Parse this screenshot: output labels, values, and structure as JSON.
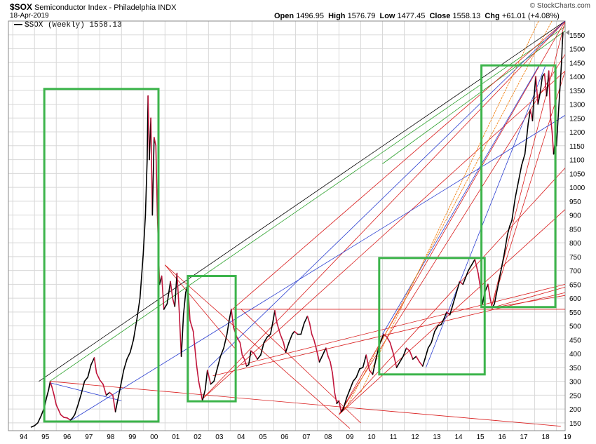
{
  "header": {
    "symbol": "$SOX",
    "title": "Semiconductor Index - Philadelphia",
    "exchange": "INDX",
    "date": "18-Apr-2019",
    "brand": "© StockCharts.com",
    "open_label": "Open",
    "open": "1496.95",
    "high_label": "High",
    "high": "1576.79",
    "low_label": "Low",
    "low": "1477.45",
    "close_label": "Close",
    "close": "1558.13",
    "chg_label": "Chg",
    "chg": "+61.01 (+4.08%)"
  },
  "legend": {
    "label": "$SOX (Weekly) 1558.13"
  },
  "colors": {
    "price_up": "#000000",
    "price_down": "#c0153b",
    "box": "#3cb44b",
    "red_line": "#d91c1c",
    "blue_line": "#2b3fd1",
    "green_line": "#2aa02a",
    "orange_line": "#f07800",
    "grid": "#d8d8d8"
  },
  "chart_data": {
    "type": "line",
    "title": "$SOX Semiconductor Index - Philadelphia INDX",
    "series_name": "$SOX (Weekly)",
    "x_unit": "year",
    "x_ticks": [
      "94",
      "95",
      "96",
      "97",
      "98",
      "99",
      "00",
      "01",
      "02",
      "03",
      "04",
      "05",
      "06",
      "07",
      "08",
      "09",
      "10",
      "11",
      "12",
      "13",
      "14",
      "15",
      "16",
      "17",
      "18",
      "19"
    ],
    "x_tick_values": [
      1994,
      1995,
      1996,
      1997,
      1998,
      1999,
      2000,
      2001,
      2002,
      2003,
      2004,
      2005,
      2006,
      2007,
      2008,
      2009,
      2010,
      2011,
      2012,
      2013,
      2014,
      2015,
      2016,
      2017,
      2018,
      2019
    ],
    "x_range": [
      1993.8,
      2019.4
    ],
    "y_ticks": [
      150,
      200,
      250,
      300,
      350,
      400,
      450,
      500,
      550,
      600,
      650,
      700,
      750,
      800,
      850,
      900,
      950,
      1000,
      1050,
      1100,
      1150,
      1200,
      1250,
      1300,
      1350,
      1400,
      1450,
      1500,
      1550
    ],
    "y_range": [
      122,
      1600
    ],
    "last_value_label": "1558.13",
    "series": [
      [
        1994.85,
        135
      ],
      [
        1995.0,
        140
      ],
      [
        1995.15,
        150
      ],
      [
        1995.3,
        175
      ],
      [
        1995.45,
        205
      ],
      [
        1995.55,
        240
      ],
      [
        1995.65,
        270
      ],
      [
        1995.72,
        298
      ],
      [
        1995.8,
        280
      ],
      [
        1995.9,
        250
      ],
      [
        1996.0,
        215
      ],
      [
        1996.1,
        198
      ],
      [
        1996.2,
        180
      ],
      [
        1996.35,
        170
      ],
      [
        1996.5,
        168
      ],
      [
        1996.65,
        160
      ],
      [
        1996.75,
        168
      ],
      [
        1996.85,
        180
      ],
      [
        1997.0,
        215
      ],
      [
        1997.15,
        255
      ],
      [
        1997.3,
        300
      ],
      [
        1997.45,
        315
      ],
      [
        1997.6,
        360
      ],
      [
        1997.75,
        385
      ],
      [
        1997.85,
        330
      ],
      [
        1998.0,
        305
      ],
      [
        1998.15,
        290
      ],
      [
        1998.3,
        250
      ],
      [
        1998.45,
        260
      ],
      [
        1998.6,
        250
      ],
      [
        1998.72,
        190
      ],
      [
        1998.82,
        230
      ],
      [
        1998.95,
        280
      ],
      [
        1999.1,
        340
      ],
      [
        1999.25,
        380
      ],
      [
        1999.4,
        405
      ],
      [
        1999.55,
        450
      ],
      [
        1999.7,
        520
      ],
      [
        1999.85,
        600
      ],
      [
        2000.0,
        760
      ],
      [
        2000.1,
        900
      ],
      [
        2000.18,
        1100
      ],
      [
        2000.22,
        1330
      ],
      [
        2000.28,
        1100
      ],
      [
        2000.35,
        1250
      ],
      [
        2000.42,
        900
      ],
      [
        2000.5,
        1180
      ],
      [
        2000.58,
        1150
      ],
      [
        2000.65,
        900
      ],
      [
        2000.75,
        650
      ],
      [
        2000.85,
        680
      ],
      [
        2000.95,
        560
      ],
      [
        2001.1,
        580
      ],
      [
        2001.25,
        660
      ],
      [
        2001.35,
        600
      ],
      [
        2001.45,
        570
      ],
      [
        2001.55,
        690
      ],
      [
        2001.65,
        560
      ],
      [
        2001.75,
        390
      ],
      [
        2001.85,
        540
      ],
      [
        2001.95,
        620
      ],
      [
        2002.05,
        650
      ],
      [
        2002.15,
        520
      ],
      [
        2002.3,
        480
      ],
      [
        2002.45,
        360
      ],
      [
        2002.55,
        300
      ],
      [
        2002.65,
        260
      ],
      [
        2002.72,
        230
      ],
      [
        2002.85,
        270
      ],
      [
        2002.95,
        340
      ],
      [
        2003.1,
        290
      ],
      [
        2003.25,
        300
      ],
      [
        2003.4,
        345
      ],
      [
        2003.55,
        390
      ],
      [
        2003.7,
        420
      ],
      [
        2003.85,
        470
      ],
      [
        2003.95,
        520
      ],
      [
        2004.05,
        560
      ],
      [
        2004.15,
        495
      ],
      [
        2004.3,
        460
      ],
      [
        2004.45,
        440
      ],
      [
        2004.55,
        395
      ],
      [
        2004.65,
        380
      ],
      [
        2004.75,
        355
      ],
      [
        2004.85,
        360
      ],
      [
        2004.95,
        410
      ],
      [
        2005.1,
        400
      ],
      [
        2005.25,
        380
      ],
      [
        2005.4,
        395
      ],
      [
        2005.55,
        440
      ],
      [
        2005.7,
        460
      ],
      [
        2005.85,
        470
      ],
      [
        2005.95,
        510
      ],
      [
        2006.05,
        555
      ],
      [
        2006.15,
        510
      ],
      [
        2006.3,
        470
      ],
      [
        2006.45,
        440
      ],
      [
        2006.55,
        405
      ],
      [
        2006.7,
        440
      ],
      [
        2006.85,
        470
      ],
      [
        2006.95,
        480
      ],
      [
        2007.1,
        470
      ],
      [
        2007.25,
        470
      ],
      [
        2007.4,
        510
      ],
      [
        2007.55,
        535
      ],
      [
        2007.65,
        510
      ],
      [
        2007.75,
        470
      ],
      [
        2007.85,
        450
      ],
      [
        2007.95,
        420
      ],
      [
        2008.1,
        370
      ],
      [
        2008.25,
        395
      ],
      [
        2008.4,
        420
      ],
      [
        2008.5,
        390
      ],
      [
        2008.6,
        370
      ],
      [
        2008.7,
        330
      ],
      [
        2008.8,
        260
      ],
      [
        2008.9,
        220
      ],
      [
        2009.0,
        230
      ],
      [
        2009.1,
        190
      ],
      [
        2009.2,
        200
      ],
      [
        2009.35,
        240
      ],
      [
        2009.5,
        270
      ],
      [
        2009.65,
        300
      ],
      [
        2009.8,
        315
      ],
      [
        2009.95,
        345
      ],
      [
        2010.1,
        350
      ],
      [
        2010.25,
        395
      ],
      [
        2010.4,
        340
      ],
      [
        2010.55,
        325
      ],
      [
        2010.7,
        380
      ],
      [
        2010.85,
        430
      ],
      [
        2010.95,
        450
      ],
      [
        2011.05,
        470
      ],
      [
        2011.2,
        460
      ],
      [
        2011.35,
        440
      ],
      [
        2011.5,
        400
      ],
      [
        2011.65,
        350
      ],
      [
        2011.8,
        370
      ],
      [
        2011.95,
        390
      ],
      [
        2012.1,
        420
      ],
      [
        2012.25,
        410
      ],
      [
        2012.4,
        380
      ],
      [
        2012.55,
        390
      ],
      [
        2012.7,
        370
      ],
      [
        2012.85,
        355
      ],
      [
        2012.95,
        380
      ],
      [
        2013.1,
        420
      ],
      [
        2013.25,
        440
      ],
      [
        2013.4,
        480
      ],
      [
        2013.55,
        500
      ],
      [
        2013.7,
        505
      ],
      [
        2013.85,
        530
      ],
      [
        2013.95,
        550
      ],
      [
        2014.1,
        540
      ],
      [
        2014.25,
        580
      ],
      [
        2014.4,
        620
      ],
      [
        2014.55,
        660
      ],
      [
        2014.7,
        650
      ],
      [
        2014.85,
        680
      ],
      [
        2014.95,
        700
      ],
      [
        2015.1,
        720
      ],
      [
        2015.25,
        740
      ],
      [
        2015.4,
        690
      ],
      [
        2015.5,
        640
      ],
      [
        2015.6,
        580
      ],
      [
        2015.7,
        620
      ],
      [
        2015.85,
        650
      ],
      [
        2015.95,
        600
      ],
      [
        2016.05,
        565
      ],
      [
        2016.15,
        580
      ],
      [
        2016.3,
        640
      ],
      [
        2016.45,
        700
      ],
      [
        2016.6,
        760
      ],
      [
        2016.75,
        830
      ],
      [
        2016.85,
        860
      ],
      [
        2016.95,
        880
      ],
      [
        2017.1,
        960
      ],
      [
        2017.25,
        1020
      ],
      [
        2017.4,
        1080
      ],
      [
        2017.55,
        1120
      ],
      [
        2017.7,
        1230
      ],
      [
        2017.8,
        1280
      ],
      [
        2017.9,
        1240
      ],
      [
        2017.95,
        1310
      ],
      [
        2018.05,
        1400
      ],
      [
        2018.15,
        1300
      ],
      [
        2018.25,
        1340
      ],
      [
        2018.35,
        1400
      ],
      [
        2018.45,
        1410
      ],
      [
        2018.55,
        1330
      ],
      [
        2018.65,
        1420
      ],
      [
        2018.72,
        1260
      ],
      [
        2018.8,
        1200
      ],
      [
        2018.87,
        1120
      ],
      [
        2018.95,
        1170
      ],
      [
        2019.0,
        1150
      ],
      [
        2019.1,
        1280
      ],
      [
        2019.18,
        1380
      ],
      [
        2019.24,
        1460
      ],
      [
        2019.27,
        1520
      ],
      [
        2019.3,
        1558.13
      ]
    ],
    "trendlines": [
      {
        "name": "black upper channel",
        "color": "black",
        "x1": 1995.2,
        "y1": 300,
        "x2": 2019.4,
        "y2": 1600
      },
      {
        "name": "green upper channel",
        "color": "green",
        "x1": 1995.7,
        "y1": 300,
        "x2": 2019.4,
        "y2": 1580
      },
      {
        "name": "green parallel",
        "color": "green",
        "x1": 2011.0,
        "y1": 1085,
        "x2": 2019.4,
        "y2": 1565
      },
      {
        "name": "red descending long",
        "color": "red",
        "x1": 1995.7,
        "y1": 300,
        "x2": 2019.2,
        "y2": 138
      },
      {
        "name": "red descending 2001",
        "color": "red",
        "x1": 2001.0,
        "y1": 720,
        "x2": 2009.5,
        "y2": 130
      },
      {
        "name": "red 2002 low fan",
        "color": "red",
        "x1": 2002.7,
        "y1": 235,
        "x2": 2019.4,
        "y2": 1420
      },
      {
        "name": "red 2002 high fan",
        "color": "red",
        "x1": 2001.0,
        "y1": 720,
        "x2": 2004.2,
        "y2": 420
      },
      {
        "name": "red horizontal support",
        "color": "red",
        "x1": 2004.1,
        "y1": 560,
        "x2": 2019.4,
        "y2": 560
      },
      {
        "name": "red 2009 fan 1",
        "color": "red",
        "x1": 2009.0,
        "y1": 180,
        "x2": 2019.4,
        "y2": 1480
      },
      {
        "name": "red 2009 fan 2",
        "color": "red",
        "x1": 2009.0,
        "y1": 180,
        "x2": 2019.4,
        "y2": 1070
      },
      {
        "name": "red 2009 fan 3",
        "color": "red",
        "x1": 2009.0,
        "y1": 180,
        "x2": 2019.4,
        "y2": 920
      },
      {
        "name": "red 2009 fan 4",
        "color": "red",
        "x1": 2009.0,
        "y1": 180,
        "x2": 2019.4,
        "y2": 1600
      },
      {
        "name": "red 2004 rising",
        "color": "red",
        "x1": 2004.5,
        "y1": 360,
        "x2": 2019.4,
        "y2": 650
      },
      {
        "name": "red 2003 rising",
        "color": "red",
        "x1": 2003.2,
        "y1": 320,
        "x2": 2019.4,
        "y2": 620
      },
      {
        "name": "red 2016 to 2019",
        "color": "red",
        "x1": 2016.0,
        "y1": 565,
        "x2": 2019.4,
        "y2": 1600
      },
      {
        "name": "red 2016 fan 2",
        "color": "red",
        "x1": 2016.0,
        "y1": 565,
        "x2": 2019.4,
        "y2": 1420
      },
      {
        "name": "red 2016 fan 3",
        "color": "red",
        "x1": 2016.0,
        "y1": 565,
        "x2": 2019.4,
        "y2": 640
      },
      {
        "name": "red 2016 fan 4",
        "color": "red",
        "x1": 2016.0,
        "y1": 565,
        "x2": 2019.4,
        "y2": 610
      },
      {
        "name": "red 2002 fan steep",
        "color": "red",
        "x1": 2002.7,
        "y1": 235,
        "x2": 2019.4,
        "y2": 1600
      },
      {
        "name": "red 2004 fan 2",
        "color": "red",
        "x1": 2004.1,
        "y1": 560,
        "x2": 2019.4,
        "y2": 1600
      },
      {
        "name": "red 2000 falling",
        "color": "red",
        "x1": 2004.5,
        "y1": 560,
        "x2": 2010.0,
        "y2": 150
      },
      {
        "name": "blue long rising",
        "color": "blue",
        "x1": 1996.7,
        "y1": 160,
        "x2": 2019.4,
        "y2": 1260
      },
      {
        "name": "blue mid falling",
        "color": "blue",
        "x1": 1995.7,
        "y1": 295,
        "x2": 1999.0,
        "y2": 230
      },
      {
        "name": "blue 2004 fan",
        "color": "blue",
        "x1": 2003.0,
        "y1": 350,
        "x2": 2019.4,
        "y2": 1600
      },
      {
        "name": "blue 2011 to 2018",
        "color": "blue",
        "x1": 2011.0,
        "y1": 470,
        "x2": 2018.2,
        "y2": 1440
      },
      {
        "name": "blue steep 2013",
        "color": "blue",
        "x1": 2013.0,
        "y1": 350,
        "x2": 2018.5,
        "y2": 1440
      },
      {
        "name": "orange 2009 fan",
        "color": "orange",
        "x1": 2009.3,
        "y1": 200,
        "x2": 2019.4,
        "y2": 1690
      },
      {
        "name": "orange 2010 fan",
        "color": "orange",
        "x1": 2010.0,
        "y1": 260,
        "x2": 2019.4,
        "y2": 1800
      }
    ],
    "boxes": [
      {
        "name": "box 1995-2000",
        "x1": 1995.45,
        "x2": 2000.7,
        "y1": 155,
        "y2": 1355
      },
      {
        "name": "box 2002-2004",
        "x1": 2002.05,
        "x2": 2004.25,
        "y1": 228,
        "y2": 680
      },
      {
        "name": "box 2010-2015",
        "x1": 2010.85,
        "x2": 2015.7,
        "y1": 325,
        "x2b": 0,
        "y2": 745
      },
      {
        "name": "box 2015-2018",
        "x1": 2015.55,
        "x2": 2018.95,
        "y1": 568,
        "y2": 1440
      }
    ]
  }
}
